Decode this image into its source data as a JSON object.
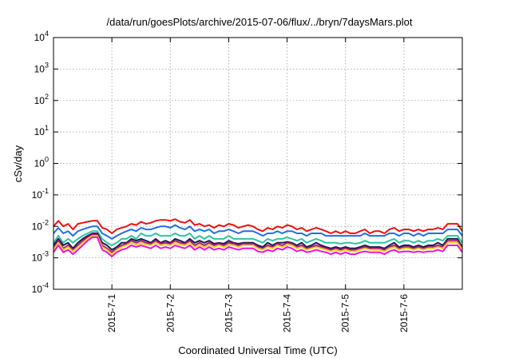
{
  "chart_data": {
    "type": "line",
    "title": "/data/run/goesPlots/archive/2015-07-06/flux/../bryn/7daysMars.plot",
    "xlabel": "Coordinated Universal Time (UTC)",
    "ylabel": "cSv/day",
    "yscale": "log",
    "ylim": [
      0.0001,
      10000
    ],
    "y_ticks": [
      {
        "value": 0.0001,
        "base": "10",
        "exp": "-4"
      },
      {
        "value": 0.001,
        "base": "10",
        "exp": "-3"
      },
      {
        "value": 0.01,
        "base": "10",
        "exp": "-2"
      },
      {
        "value": 0.1,
        "base": "10",
        "exp": "-1"
      },
      {
        "value": 1,
        "base": "10",
        "exp": "0"
      },
      {
        "value": 10,
        "base": "10",
        "exp": "1"
      },
      {
        "value": 100,
        "base": "10",
        "exp": "2"
      },
      {
        "value": 1000,
        "base": "10",
        "exp": "3"
      },
      {
        "value": 10000,
        "base": "10",
        "exp": "4"
      }
    ],
    "xlim": [
      "2015-06-30T00:00",
      "2015-07-07T00:00"
    ],
    "x_ticks": [
      "2015-7-1",
      "2015-7-2",
      "2015-7-3",
      "2015-7-4",
      "2015-7-5",
      "2015-7-6"
    ],
    "grid": true,
    "series": [
      {
        "color": "#ee1111",
        "values": [
          0.01,
          0.015,
          0.01,
          0.012,
          0.008,
          0.012,
          0.013,
          0.014,
          0.015,
          0.015,
          0.009,
          0.008,
          0.006,
          0.008,
          0.009,
          0.01,
          0.012,
          0.011,
          0.014,
          0.012,
          0.013,
          0.015,
          0.016,
          0.016,
          0.015,
          0.017,
          0.014,
          0.013,
          0.016,
          0.011,
          0.012,
          0.01,
          0.011,
          0.009,
          0.011,
          0.01,
          0.012,
          0.011,
          0.009,
          0.01,
          0.011,
          0.01,
          0.008,
          0.007,
          0.009,
          0.008,
          0.01,
          0.009,
          0.011,
          0.01,
          0.008,
          0.009,
          0.007,
          0.008,
          0.009,
          0.008,
          0.007,
          0.006,
          0.007,
          0.006,
          0.007,
          0.006,
          0.006,
          0.007,
          0.008,
          0.006,
          0.007,
          0.007,
          0.006,
          0.008,
          0.009,
          0.007,
          0.008,
          0.008,
          0.007,
          0.008,
          0.007,
          0.008,
          0.008,
          0.009,
          0.008,
          0.012,
          0.012,
          0.012,
          0.007
        ]
      },
      {
        "color": "#1e6fe6",
        "values": [
          0.006,
          0.009,
          0.006,
          0.007,
          0.005,
          0.007,
          0.008,
          0.009,
          0.01,
          0.01,
          0.006,
          0.005,
          0.004,
          0.005,
          0.006,
          0.007,
          0.008,
          0.007,
          0.009,
          0.008,
          0.008,
          0.009,
          0.01,
          0.01,
          0.009,
          0.011,
          0.009,
          0.008,
          0.01,
          0.007,
          0.008,
          0.007,
          0.008,
          0.006,
          0.007,
          0.007,
          0.008,
          0.007,
          0.006,
          0.007,
          0.007,
          0.007,
          0.006,
          0.005,
          0.006,
          0.006,
          0.007,
          0.006,
          0.007,
          0.007,
          0.006,
          0.006,
          0.005,
          0.006,
          0.006,
          0.006,
          0.005,
          0.005,
          0.005,
          0.005,
          0.005,
          0.005,
          0.005,
          0.005,
          0.006,
          0.005,
          0.005,
          0.005,
          0.005,
          0.006,
          0.006,
          0.005,
          0.006,
          0.006,
          0.005,
          0.006,
          0.005,
          0.006,
          0.006,
          0.006,
          0.006,
          0.008,
          0.008,
          0.008,
          0.005
        ]
      },
      {
        "color": "#2ec4a0",
        "values": [
          0.003,
          0.005,
          0.003,
          0.004,
          0.003,
          0.004,
          0.005,
          0.006,
          0.007,
          0.007,
          0.004,
          0.003,
          0.0025,
          0.003,
          0.004,
          0.004,
          0.005,
          0.004,
          0.006,
          0.005,
          0.005,
          0.006,
          0.005,
          0.005,
          0.005,
          0.006,
          0.005,
          0.005,
          0.006,
          0.004,
          0.005,
          0.004,
          0.005,
          0.004,
          0.004,
          0.004,
          0.005,
          0.004,
          0.004,
          0.004,
          0.004,
          0.004,
          0.0035,
          0.003,
          0.004,
          0.0035,
          0.004,
          0.004,
          0.0045,
          0.004,
          0.0035,
          0.004,
          0.003,
          0.0035,
          0.004,
          0.0035,
          0.003,
          0.003,
          0.003,
          0.0028,
          0.003,
          0.003,
          0.0028,
          0.003,
          0.0035,
          0.003,
          0.003,
          0.003,
          0.003,
          0.0035,
          0.004,
          0.003,
          0.0035,
          0.0035,
          0.003,
          0.0035,
          0.003,
          0.0035,
          0.0035,
          0.004,
          0.0035,
          0.005,
          0.005,
          0.005,
          0.003
        ]
      },
      {
        "color": "#1a1a55",
        "values": [
          0.0025,
          0.004,
          0.0025,
          0.003,
          0.002,
          0.003,
          0.004,
          0.005,
          0.006,
          0.006,
          0.003,
          0.0025,
          0.0018,
          0.0022,
          0.003,
          0.003,
          0.004,
          0.0035,
          0.004,
          0.0035,
          0.003,
          0.004,
          0.003,
          0.0035,
          0.003,
          0.004,
          0.0035,
          0.003,
          0.004,
          0.003,
          0.0035,
          0.003,
          0.0035,
          0.0028,
          0.003,
          0.0028,
          0.0035,
          0.003,
          0.0028,
          0.003,
          0.003,
          0.003,
          0.0025,
          0.0022,
          0.003,
          0.0025,
          0.003,
          0.003,
          0.0032,
          0.003,
          0.0025,
          0.003,
          0.0022,
          0.0025,
          0.003,
          0.0025,
          0.0022,
          0.002,
          0.0022,
          0.002,
          0.0022,
          0.002,
          0.002,
          0.0022,
          0.0025,
          0.0022,
          0.0022,
          0.0022,
          0.002,
          0.0025,
          0.003,
          0.0022,
          0.0025,
          0.0025,
          0.0022,
          0.0025,
          0.0022,
          0.0025,
          0.0025,
          0.003,
          0.0025,
          0.004,
          0.004,
          0.004,
          0.0022
        ]
      },
      {
        "color": "#b01878",
        "values": [
          0.002,
          0.0035,
          0.002,
          0.0025,
          0.0018,
          0.0025,
          0.0035,
          0.0045,
          0.0055,
          0.0055,
          0.0025,
          0.002,
          0.0015,
          0.002,
          0.0025,
          0.0028,
          0.0035,
          0.003,
          0.0035,
          0.003,
          0.0028,
          0.0035,
          0.0028,
          0.003,
          0.0028,
          0.0035,
          0.003,
          0.0028,
          0.0035,
          0.0025,
          0.003,
          0.0025,
          0.003,
          0.0025,
          0.0028,
          0.0025,
          0.003,
          0.0028,
          0.0025,
          0.0028,
          0.0028,
          0.0028,
          0.0022,
          0.002,
          0.0025,
          0.0022,
          0.0028,
          0.0025,
          0.003,
          0.0028,
          0.0022,
          0.0025,
          0.002,
          0.0022,
          0.0025,
          0.0022,
          0.002,
          0.0018,
          0.002,
          0.0018,
          0.002,
          0.0018,
          0.0018,
          0.002,
          0.0022,
          0.002,
          0.002,
          0.002,
          0.0018,
          0.0022,
          0.0025,
          0.002,
          0.0022,
          0.0022,
          0.002,
          0.0022,
          0.002,
          0.0022,
          0.0022,
          0.0025,
          0.0022,
          0.0035,
          0.0035,
          0.0035,
          0.002
        ]
      },
      {
        "color": "#e6d21e",
        "values": [
          0.0018,
          0.003,
          0.0018,
          0.0022,
          0.0016,
          0.0022,
          0.003,
          0.004,
          0.005,
          0.005,
          0.0022,
          0.0018,
          0.0013,
          0.0018,
          0.0022,
          0.0025,
          0.003,
          0.0026,
          0.003,
          0.0026,
          0.0025,
          0.003,
          0.0025,
          0.0026,
          0.0025,
          0.003,
          0.0026,
          0.0025,
          0.003,
          0.0022,
          0.0026,
          0.0022,
          0.0026,
          0.0022,
          0.0025,
          0.0022,
          0.0026,
          0.0025,
          0.0022,
          0.0025,
          0.0025,
          0.0025,
          0.002,
          0.0018,
          0.0022,
          0.002,
          0.0025,
          0.0022,
          0.0026,
          0.0025,
          0.002,
          0.0022,
          0.0018,
          0.002,
          0.0022,
          0.002,
          0.0018,
          0.0016,
          0.0018,
          0.0016,
          0.0018,
          0.0016,
          0.0016,
          0.0018,
          0.002,
          0.0018,
          0.0018,
          0.0018,
          0.0016,
          0.002,
          0.0022,
          0.0018,
          0.002,
          0.002,
          0.0018,
          0.002,
          0.0018,
          0.002,
          0.002,
          0.0022,
          0.002,
          0.003,
          0.003,
          0.003,
          0.0018
        ]
      },
      {
        "color": "#ee11dd",
        "values": [
          0.0015,
          0.0025,
          0.0015,
          0.0018,
          0.0013,
          0.0018,
          0.0025,
          0.0035,
          0.0045,
          0.0045,
          0.0018,
          0.0015,
          0.0011,
          0.0015,
          0.0018,
          0.002,
          0.0025,
          0.0022,
          0.0025,
          0.0022,
          0.002,
          0.0025,
          0.002,
          0.0022,
          0.002,
          0.0025,
          0.0022,
          0.002,
          0.0025,
          0.0018,
          0.0022,
          0.0018,
          0.0022,
          0.0018,
          0.002,
          0.0018,
          0.0022,
          0.002,
          0.0018,
          0.002,
          0.002,
          0.002,
          0.0016,
          0.0015,
          0.0018,
          0.0016,
          0.002,
          0.0018,
          0.0022,
          0.002,
          0.0016,
          0.0018,
          0.0015,
          0.0016,
          0.0018,
          0.0016,
          0.0015,
          0.0013,
          0.0015,
          0.0013,
          0.0015,
          0.0013,
          0.0013,
          0.0015,
          0.0016,
          0.0015,
          0.0015,
          0.0015,
          0.0013,
          0.0016,
          0.0018,
          0.0015,
          0.0016,
          0.0016,
          0.0015,
          0.0016,
          0.0015,
          0.0016,
          0.0016,
          0.0018,
          0.0016,
          0.0025,
          0.0025,
          0.0025,
          0.0015
        ]
      }
    ]
  }
}
